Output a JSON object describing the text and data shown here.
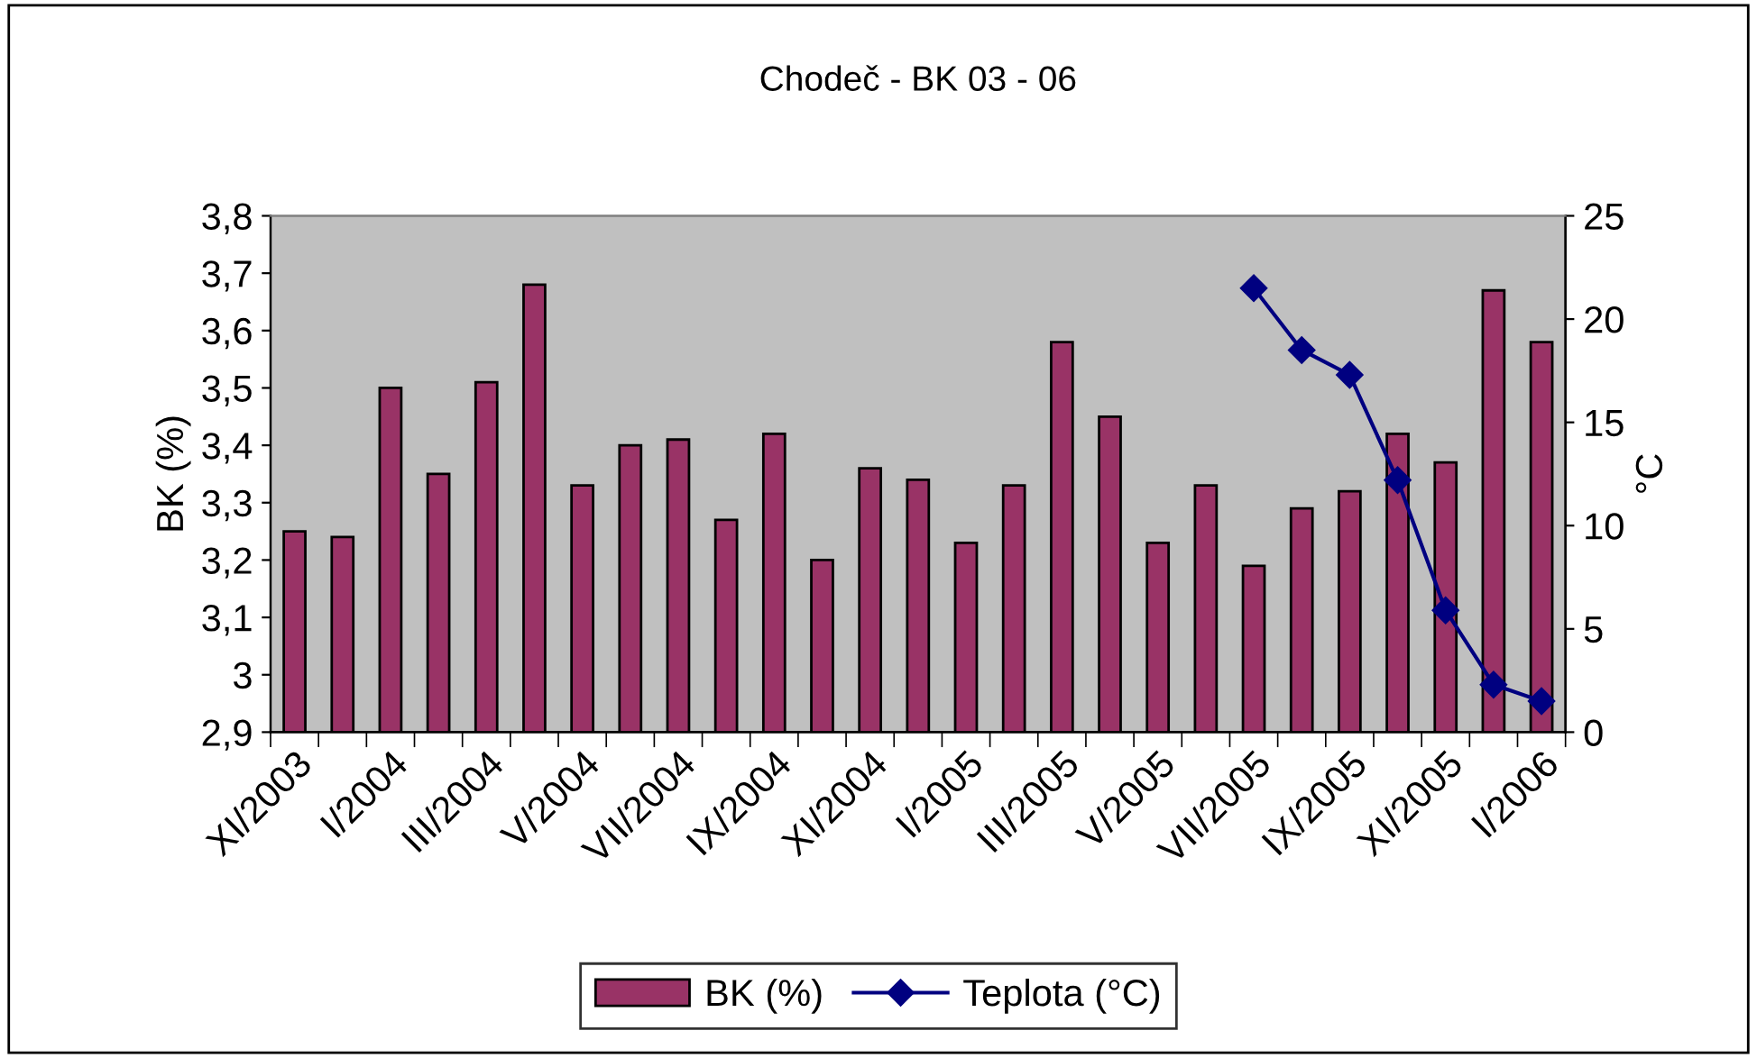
{
  "chart_data": {
    "type": "bar",
    "title": "Chodeč - BK 03 - 06",
    "ylabel": "BK (%)",
    "y2label": "°C",
    "categories": [
      "XI/2003",
      null,
      "I/2004",
      null,
      "III/2004",
      null,
      "V/2004",
      null,
      "VII/2004",
      null,
      "IX/2004",
      null,
      "XI/2004",
      null,
      "I/2005",
      null,
      "III/2005",
      null,
      "V/2005",
      null,
      "VII/2005",
      null,
      "IX/2005",
      null,
      "XI/2005",
      null,
      "I/2006"
    ],
    "series": [
      {
        "name": "BK (%)",
        "color": "#993366",
        "values": [
          3.25,
          3.24,
          3.5,
          3.35,
          3.51,
          3.68,
          3.33,
          3.4,
          3.41,
          3.27,
          3.42,
          3.2,
          3.36,
          3.34,
          3.23,
          3.33,
          3.58,
          3.45,
          3.23,
          3.33,
          3.19,
          3.29,
          3.32,
          3.42,
          3.37,
          3.67,
          3.58
        ]
      },
      {
        "name": "Teplota (°C)",
        "type": "line",
        "axis": "y2",
        "color": "#000080",
        "marker": "diamond",
        "values": [
          null,
          null,
          null,
          null,
          null,
          null,
          null,
          null,
          null,
          null,
          null,
          null,
          null,
          null,
          null,
          null,
          null,
          null,
          null,
          null,
          21.5,
          18.5,
          17.3,
          12.2,
          5.9,
          2.3,
          1.5
        ]
      }
    ],
    "ylim": [
      2.9,
      3.8
    ],
    "yticks": [
      {
        "value": 2.9,
        "label": "2,9"
      },
      3,
      {
        "value": 3.1,
        "label": "3,1"
      },
      {
        "value": 3.2,
        "label": "3,2"
      },
      {
        "value": 3.3,
        "label": "3,3"
      },
      {
        "value": 3.4,
        "label": "3,4"
      },
      {
        "value": 3.5,
        "label": "3,5"
      },
      {
        "value": 3.6,
        "label": "3,6"
      },
      {
        "value": 3.7,
        "label": "3,7"
      },
      {
        "value": 3.8,
        "label": "3,8"
      }
    ],
    "y2lim": [
      0,
      25
    ],
    "y2ticks": [
      0,
      5,
      10,
      15,
      20,
      25
    ],
    "grid": false,
    "legend": "bottom"
  }
}
